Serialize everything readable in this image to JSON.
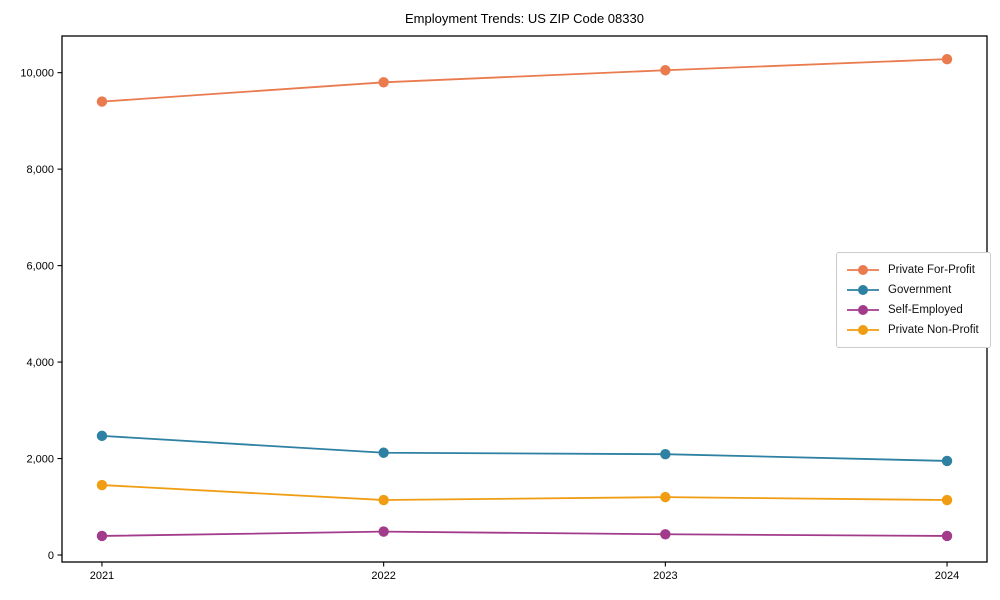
{
  "chart_data": {
    "type": "line",
    "title": "Employment Trends: US ZIP Code 08330",
    "xlabel": "",
    "ylabel": "",
    "categories": [
      "2021",
      "2022",
      "2023",
      "2024"
    ],
    "series": [
      {
        "name": "Private For-Profit",
        "color": "#e97b4f",
        "values": [
          9400,
          9800,
          10050,
          10280
        ]
      },
      {
        "name": "Government",
        "color": "#2e81a2",
        "values": [
          2470,
          2120,
          2090,
          1950
        ]
      },
      {
        "name": "Self-Employed",
        "color": "#a33b8b",
        "values": [
          395,
          485,
          430,
          395
        ]
      },
      {
        "name": "Private Non-Profit",
        "color": "#f09d13",
        "values": [
          1450,
          1140,
          1200,
          1140
        ]
      }
    ],
    "yticks": {
      "values": [
        0,
        2000,
        4000,
        6000,
        8000,
        10000
      ],
      "labels": [
        "0",
        "2,000",
        "4,000",
        "6,000",
        "8,000",
        "10,000"
      ]
    },
    "ylim": [
      -145,
      10760
    ],
    "grid": false,
    "legend_position": "center right",
    "axis_color": "#000000",
    "marker": "circle"
  }
}
